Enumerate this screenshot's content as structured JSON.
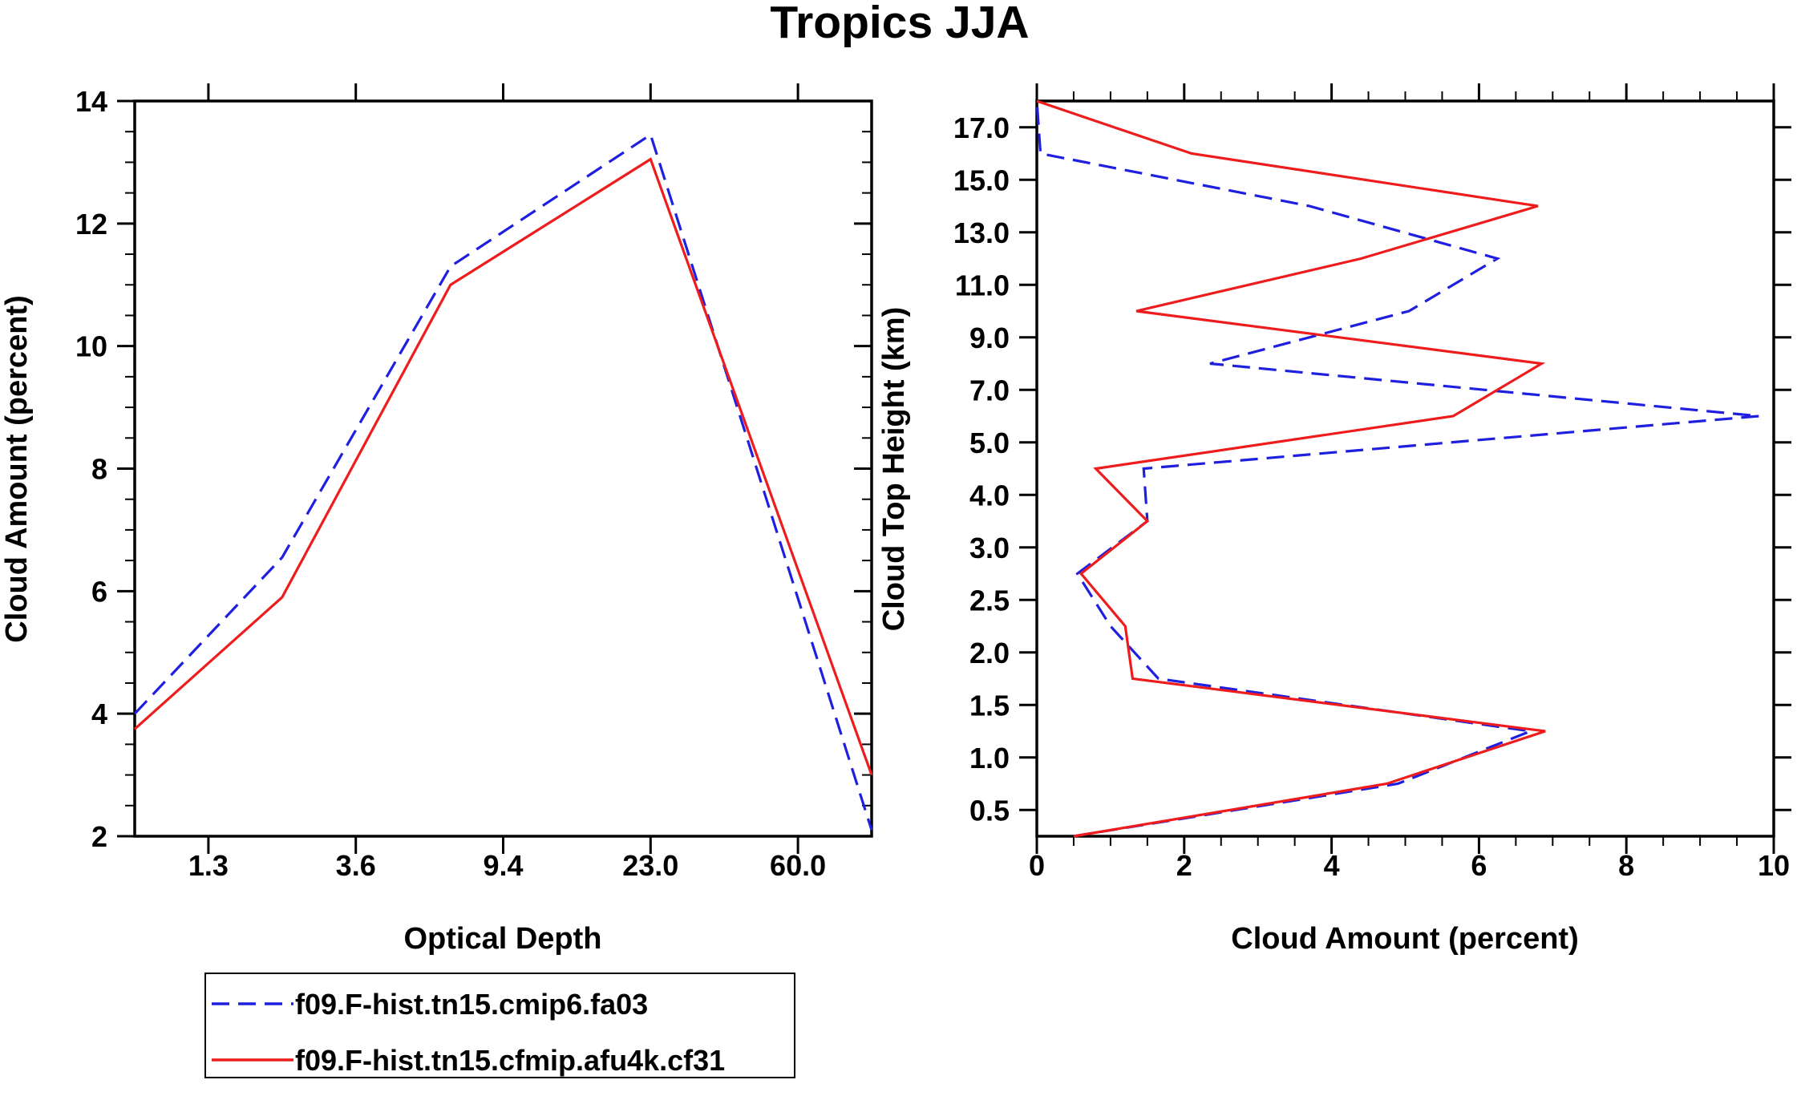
{
  "title": "Tropics JJA",
  "colors": {
    "series_a": "#1f1fe0",
    "series_b": "#ee1c1c",
    "axis": "#000000",
    "background": "#ffffff"
  },
  "legend": {
    "entries": [
      {
        "label": "f09.F-hist.tn15.cmip6.fa03",
        "style": "dashed",
        "color": "#1f1fe0"
      },
      {
        "label": "f09.F-hist.tn15.cfmip.afu4k.cf31",
        "style": "solid",
        "color": "#ee1c1c"
      }
    ]
  },
  "chart_data": [
    {
      "type": "line",
      "xlabel": "Optical Depth",
      "ylabel": "Cloud Amount (percent)",
      "ylim": [
        2,
        14
      ],
      "yticks": [
        2,
        4,
        6,
        8,
        10,
        12,
        14
      ],
      "xlim": [
        0,
        7
      ],
      "x": [
        0,
        1.4,
        3.0,
        4.9,
        7.0
      ],
      "xtick_positions": [
        0.7,
        2.1,
        3.5,
        4.9,
        6.3
      ],
      "xtick_labels": [
        "1.3",
        "3.6",
        "9.4",
        "23.0",
        "60.0"
      ],
      "series": [
        {
          "name": "f09.F-hist.tn15.cmip6.fa03",
          "values": [
            4.0,
            6.55,
            11.3,
            13.45,
            2.1
          ]
        },
        {
          "name": "f09.F-hist.tn15.cfmip.afu4k.cf31",
          "values": [
            3.75,
            5.9,
            11.0,
            13.05,
            3.0
          ]
        }
      ]
    },
    {
      "type": "line",
      "xlabel": "Cloud Amount (percent)",
      "ylabel": "Cloud Top Height (km)",
      "xlim": [
        0,
        10
      ],
      "xticks": [
        0,
        2,
        4,
        6,
        8,
        10
      ],
      "ylim": [
        0,
        14
      ],
      "ytick_positions": [
        0.5,
        1.5,
        2.5,
        3.5,
        4.5,
        5.5,
        6.5,
        7.5,
        8.5,
        9.5,
        10.5,
        11.5,
        12.5,
        13.5
      ],
      "ytick_labels": [
        "0.5",
        "1.0",
        "1.5",
        "2.0",
        "2.5",
        "3.0",
        "4.0",
        "5.0",
        "7.0",
        "9.0",
        "11.0",
        "13.0",
        "15.0",
        "17.0"
      ],
      "y": [
        0,
        1,
        2,
        3,
        4,
        5,
        6,
        7,
        8,
        9,
        10,
        11,
        12,
        13,
        14
      ],
      "series": [
        {
          "name": "f09.F-hist.tn15.cmip6.fa03",
          "values": [
            0.5,
            4.9,
            6.7,
            1.65,
            1.0,
            0.55,
            1.5,
            1.45,
            9.8,
            2.35,
            5.05,
            6.25,
            3.7,
            0.05,
            0.0
          ]
        },
        {
          "name": "f09.F-hist.tn15.cfmip.afu4k.cf31",
          "values": [
            0.5,
            4.75,
            6.9,
            1.3,
            1.2,
            0.6,
            1.5,
            0.8,
            5.65,
            6.85,
            1.35,
            4.4,
            6.8,
            2.1,
            0.0
          ]
        }
      ]
    }
  ]
}
